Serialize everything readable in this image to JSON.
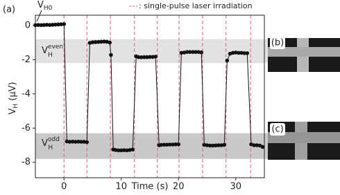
{
  "chart_data": {
    "type": "line",
    "panel_label": "(a)",
    "x_label": "Time (s)",
    "y_label": {
      "base": "V",
      "sub": "H",
      "unit": " (μV)"
    },
    "legend": ": single-pulse laser irradiation",
    "laser_color": "#e06070",
    "laser_times": [
      0,
      4.0,
      8.1,
      12.3,
      16.3,
      20.1,
      24.2,
      28.3,
      32.6
    ],
    "shaded_bands": [
      {
        "from": -0.8,
        "to": -2.2,
        "color": "#e2e2e2"
      },
      {
        "from": -6.3,
        "to": -7.8,
        "color": "#c9c9c9"
      }
    ],
    "annotations": [
      {
        "base": "V",
        "sub": "H0"
      },
      {
        "base": "V",
        "sub": "H",
        "sup": "even"
      },
      {
        "base": "V",
        "sub": "H",
        "sup": "odd"
      }
    ],
    "insets": [
      "(b)",
      "(c)"
    ],
    "xlim": [
      -5,
      35
    ],
    "xticks": [
      0,
      10,
      20,
      30
    ],
    "ylim": [
      -8.9,
      0.6
    ],
    "yticks": [
      0,
      -2,
      -4,
      -6,
      -8
    ],
    "series": [
      {
        "color": "#111111",
        "x": [
          -5,
          -4.5,
          -4,
          -3.5,
          -3,
          -2.5,
          -2,
          -1.5,
          -1,
          -0.5,
          0,
          0.5,
          1,
          1.5,
          2,
          2.5,
          3,
          3.5,
          4,
          4.5,
          5,
          5.5,
          6,
          6.5,
          7,
          7.5,
          8,
          8.2,
          8.6,
          9,
          9.5,
          10,
          10.5,
          11,
          11.5,
          12,
          12.6,
          13,
          13.5,
          14,
          14.5,
          15,
          15.5,
          16,
          16.6,
          17,
          17.5,
          18,
          18.5,
          19,
          19.5,
          20,
          20.5,
          21,
          21.5,
          22,
          22.5,
          23,
          23.5,
          24,
          24.5,
          25,
          25.5,
          26,
          26.5,
          27,
          27.5,
          28,
          28.5,
          29,
          29.5,
          30,
          30.5,
          31,
          31.5,
          32,
          32.7,
          33.2,
          33.7,
          34.2,
          34.7
        ],
        "values": [
          0.02,
          0.03,
          0.02,
          0.03,
          0.04,
          0.03,
          0.04,
          0.05,
          0.06,
          0.07,
          0.08,
          -6.78,
          -6.8,
          -6.79,
          -6.8,
          -6.79,
          -6.8,
          -6.8,
          -6.82,
          -1.02,
          -0.98,
          -0.97,
          -0.96,
          -0.95,
          -0.94,
          -0.95,
          -1.0,
          -1.72,
          -7.25,
          -7.28,
          -7.3,
          -7.3,
          -7.29,
          -7.3,
          -7.28,
          -7.25,
          -1.8,
          -1.85,
          -1.86,
          -1.85,
          -1.85,
          -1.84,
          -1.84,
          -1.82,
          -7.0,
          -6.98,
          -6.97,
          -6.97,
          -6.96,
          -6.96,
          -6.95,
          -6.95,
          -1.6,
          -1.58,
          -1.55,
          -1.55,
          -1.55,
          -1.55,
          -1.55,
          -1.57,
          -6.98,
          -7.0,
          -7.02,
          -7.02,
          -7.01,
          -7.0,
          -7.0,
          -6.98,
          -2.05,
          -1.65,
          -1.6,
          -1.58,
          -1.6,
          -1.6,
          -1.62,
          -1.62,
          -6.95,
          -7.0,
          -7.0,
          -7.02,
          -7.1
        ]
      }
    ]
  }
}
